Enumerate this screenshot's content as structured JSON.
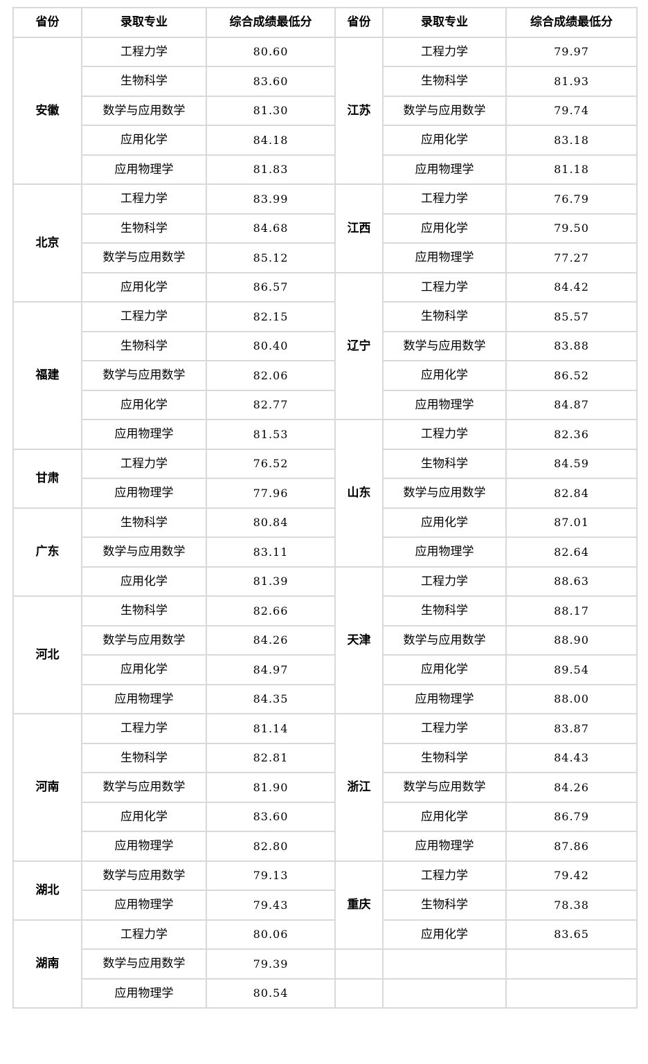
{
  "chart_data": {
    "type": "table",
    "columns": [
      "省份",
      "录取专业",
      "综合成绩最低分"
    ],
    "rows": [
      [
        "安徽",
        "工程力学",
        80.6
      ],
      [
        "安徽",
        "生物科学",
        83.6
      ],
      [
        "安徽",
        "数学与应用数学",
        81.3
      ],
      [
        "安徽",
        "应用化学",
        84.18
      ],
      [
        "安徽",
        "应用物理学",
        81.83
      ],
      [
        "北京",
        "工程力学",
        83.99
      ],
      [
        "北京",
        "生物科学",
        84.68
      ],
      [
        "北京",
        "数学与应用数学",
        85.12
      ],
      [
        "北京",
        "应用化学",
        86.57
      ],
      [
        "福建",
        "工程力学",
        82.15
      ],
      [
        "福建",
        "生物科学",
        80.4
      ],
      [
        "福建",
        "数学与应用数学",
        82.06
      ],
      [
        "福建",
        "应用化学",
        82.77
      ],
      [
        "福建",
        "应用物理学",
        81.53
      ],
      [
        "甘肃",
        "工程力学",
        76.52
      ],
      [
        "甘肃",
        "应用物理学",
        77.96
      ],
      [
        "广东",
        "生物科学",
        80.84
      ],
      [
        "广东",
        "数学与应用数学",
        83.11
      ],
      [
        "广东",
        "应用化学",
        81.39
      ],
      [
        "河北",
        "生物科学",
        82.66
      ],
      [
        "河北",
        "数学与应用数学",
        84.26
      ],
      [
        "河北",
        "应用化学",
        84.97
      ],
      [
        "河北",
        "应用物理学",
        84.35
      ],
      [
        "河南",
        "工程力学",
        81.14
      ],
      [
        "河南",
        "生物科学",
        82.81
      ],
      [
        "河南",
        "数学与应用数学",
        81.9
      ],
      [
        "河南",
        "应用化学",
        83.6
      ],
      [
        "河南",
        "应用物理学",
        82.8
      ],
      [
        "湖北",
        "数学与应用数学",
        79.13
      ],
      [
        "湖北",
        "应用物理学",
        79.43
      ],
      [
        "湖南",
        "工程力学",
        80.06
      ],
      [
        "湖南",
        "数学与应用数学",
        79.39
      ],
      [
        "湖南",
        "应用物理学",
        80.54
      ],
      [
        "江苏",
        "工程力学",
        79.97
      ],
      [
        "江苏",
        "生物科学",
        81.93
      ],
      [
        "江苏",
        "数学与应用数学",
        79.74
      ],
      [
        "江苏",
        "应用化学",
        83.18
      ],
      [
        "江苏",
        "应用物理学",
        81.18
      ],
      [
        "江西",
        "工程力学",
        76.79
      ],
      [
        "江西",
        "应用化学",
        79.5
      ],
      [
        "江西",
        "应用物理学",
        77.27
      ],
      [
        "辽宁",
        "工程力学",
        84.42
      ],
      [
        "辽宁",
        "生物科学",
        85.57
      ],
      [
        "辽宁",
        "数学与应用数学",
        83.88
      ],
      [
        "辽宁",
        "应用化学",
        86.52
      ],
      [
        "辽宁",
        "应用物理学",
        84.87
      ],
      [
        "山东",
        "工程力学",
        82.36
      ],
      [
        "山东",
        "生物科学",
        84.59
      ],
      [
        "山东",
        "数学与应用数学",
        82.84
      ],
      [
        "山东",
        "应用化学",
        87.01
      ],
      [
        "山东",
        "应用物理学",
        82.64
      ],
      [
        "天津",
        "工程力学",
        88.63
      ],
      [
        "天津",
        "生物科学",
        88.17
      ],
      [
        "天津",
        "数学与应用数学",
        88.9
      ],
      [
        "天津",
        "应用化学",
        89.54
      ],
      [
        "天津",
        "应用物理学",
        88.0
      ],
      [
        "浙江",
        "工程力学",
        83.87
      ],
      [
        "浙江",
        "生物科学",
        84.43
      ],
      [
        "浙江",
        "数学与应用数学",
        84.26
      ],
      [
        "浙江",
        "应用化学",
        86.79
      ],
      [
        "浙江",
        "应用物理学",
        87.86
      ],
      [
        "重庆",
        "工程力学",
        79.42
      ],
      [
        "重庆",
        "生物科学",
        78.38
      ],
      [
        "重庆",
        "应用化学",
        83.65
      ]
    ]
  },
  "left_table": {
    "headers": [
      "省份",
      "录取专业",
      "综合成绩最低分"
    ],
    "groups": [
      {
        "province": "安徽",
        "rows": [
          [
            "工程力学",
            "80.60"
          ],
          [
            "生物科学",
            "83.60"
          ],
          [
            "数学与应用数学",
            "81.30"
          ],
          [
            "应用化学",
            "84.18"
          ],
          [
            "应用物理学",
            "81.83"
          ]
        ]
      },
      {
        "province": "北京",
        "rows": [
          [
            "工程力学",
            "83.99"
          ],
          [
            "生物科学",
            "84.68"
          ],
          [
            "数学与应用数学",
            "85.12"
          ],
          [
            "应用化学",
            "86.57"
          ]
        ]
      },
      {
        "province": "福建",
        "rows": [
          [
            "工程力学",
            "82.15"
          ],
          [
            "生物科学",
            "80.40"
          ],
          [
            "数学与应用数学",
            "82.06"
          ],
          [
            "应用化学",
            "82.77"
          ],
          [
            "应用物理学",
            "81.53"
          ]
        ]
      },
      {
        "province": "甘肃",
        "rows": [
          [
            "工程力学",
            "76.52"
          ],
          [
            "应用物理学",
            "77.96"
          ]
        ]
      },
      {
        "province": "广东",
        "rows": [
          [
            "生物科学",
            "80.84"
          ],
          [
            "数学与应用数学",
            "83.11"
          ],
          [
            "应用化学",
            "81.39"
          ]
        ]
      },
      {
        "province": "河北",
        "rows": [
          [
            "生物科学",
            "82.66"
          ],
          [
            "数学与应用数学",
            "84.26"
          ],
          [
            "应用化学",
            "84.97"
          ],
          [
            "应用物理学",
            "84.35"
          ]
        ]
      },
      {
        "province": "河南",
        "rows": [
          [
            "工程力学",
            "81.14"
          ],
          [
            "生物科学",
            "82.81"
          ],
          [
            "数学与应用数学",
            "81.90"
          ],
          [
            "应用化学",
            "83.60"
          ],
          [
            "应用物理学",
            "82.80"
          ]
        ]
      },
      {
        "province": "湖北",
        "rows": [
          [
            "数学与应用数学",
            "79.13"
          ],
          [
            "应用物理学",
            "79.43"
          ]
        ]
      },
      {
        "province": "湖南",
        "rows": [
          [
            "工程力学",
            "80.06"
          ],
          [
            "数学与应用数学",
            "79.39"
          ],
          [
            "应用物理学",
            "80.54"
          ]
        ]
      }
    ]
  },
  "right_table": {
    "headers": [
      "省份",
      "录取专业",
      "综合成绩最低分"
    ],
    "groups": [
      {
        "province": "江苏",
        "rows": [
          [
            "工程力学",
            "79.97"
          ],
          [
            "生物科学",
            "81.93"
          ],
          [
            "数学与应用数学",
            "79.74"
          ],
          [
            "应用化学",
            "83.18"
          ],
          [
            "应用物理学",
            "81.18"
          ]
        ]
      },
      {
        "province": "江西",
        "rows": [
          [
            "工程力学",
            "76.79"
          ],
          [
            "应用化学",
            "79.50"
          ],
          [
            "应用物理学",
            "77.27"
          ]
        ]
      },
      {
        "province": "辽宁",
        "rows": [
          [
            "工程力学",
            "84.42"
          ],
          [
            "生物科学",
            "85.57"
          ],
          [
            "数学与应用数学",
            "83.88"
          ],
          [
            "应用化学",
            "86.52"
          ],
          [
            "应用物理学",
            "84.87"
          ]
        ]
      },
      {
        "province": "山东",
        "rows": [
          [
            "工程力学",
            "82.36"
          ],
          [
            "生物科学",
            "84.59"
          ],
          [
            "数学与应用数学",
            "82.84"
          ],
          [
            "应用化学",
            "87.01"
          ],
          [
            "应用物理学",
            "82.64"
          ]
        ]
      },
      {
        "province": "天津",
        "rows": [
          [
            "工程力学",
            "88.63"
          ],
          [
            "生物科学",
            "88.17"
          ],
          [
            "数学与应用数学",
            "88.90"
          ],
          [
            "应用化学",
            "89.54"
          ],
          [
            "应用物理学",
            "88.00"
          ]
        ]
      },
      {
        "province": "浙江",
        "rows": [
          [
            "工程力学",
            "83.87"
          ],
          [
            "生物科学",
            "84.43"
          ],
          [
            "数学与应用数学",
            "84.26"
          ],
          [
            "应用化学",
            "86.79"
          ],
          [
            "应用物理学",
            "87.86"
          ]
        ]
      },
      {
        "province": "重庆",
        "rows": [
          [
            "工程力学",
            "79.42"
          ],
          [
            "生物科学",
            "78.38"
          ],
          [
            "应用化学",
            "83.65"
          ]
        ]
      },
      {
        "province": "",
        "rows": [
          [
            "",
            ""
          ]
        ]
      },
      {
        "province": "",
        "rows": [
          [
            "",
            ""
          ]
        ]
      }
    ]
  }
}
